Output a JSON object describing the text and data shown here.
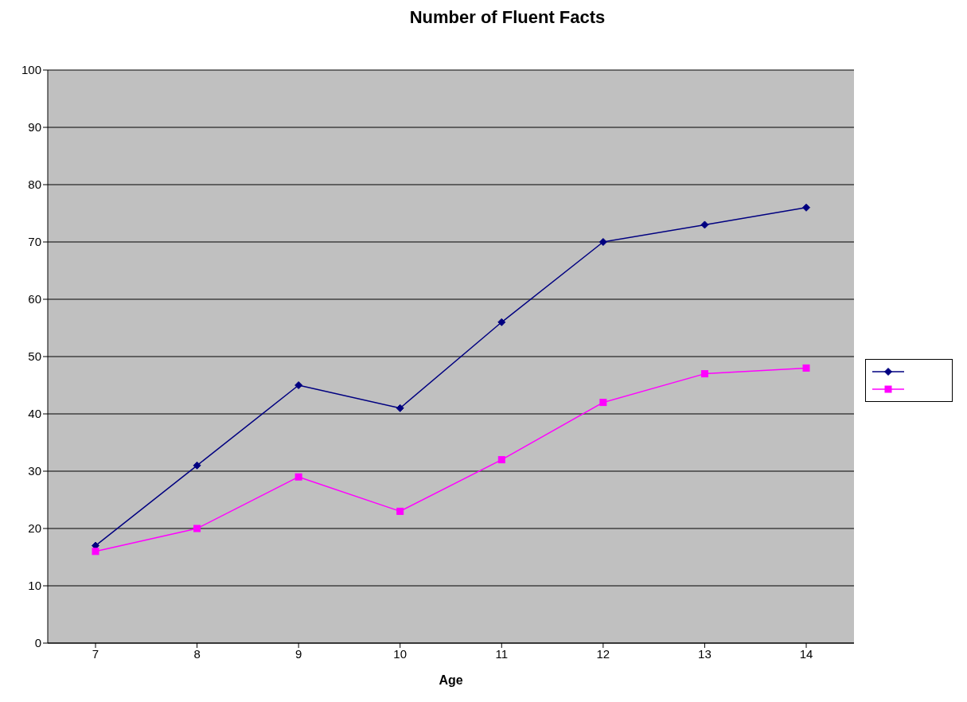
{
  "chart_data": {
    "type": "line",
    "title": "Number of Fluent Facts",
    "xlabel": "Age",
    "categories": [
      "7",
      "8",
      "9",
      "10",
      "11",
      "12",
      "13",
      "14"
    ],
    "series": [
      {
        "color": "#000080",
        "marker": "diamond",
        "values": [
          17,
          31,
          45,
          41,
          56,
          70,
          73,
          76
        ]
      },
      {
        "color": "#ff00ff",
        "marker": "square",
        "values": [
          16,
          20,
          29,
          23,
          32,
          42,
          47,
          48
        ]
      }
    ],
    "ylim": [
      0,
      100
    ],
    "yticks": [
      0,
      10,
      20,
      30,
      40,
      50,
      60,
      70,
      80,
      90,
      100
    ],
    "grid": "y"
  }
}
